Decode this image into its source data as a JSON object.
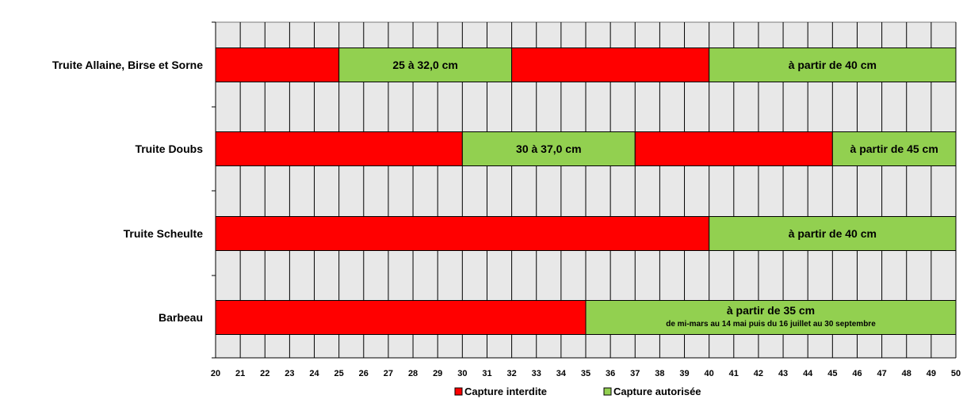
{
  "chart_data": {
    "type": "bar",
    "orientation": "horizontal",
    "stacked": true,
    "xlim": [
      20,
      50
    ],
    "x_ticks": [
      "20",
      "21",
      "22",
      "23",
      "24",
      "25",
      "26",
      "27",
      "28",
      "29",
      "30",
      "31",
      "32",
      "33",
      "34",
      "35",
      "36",
      "37",
      "38",
      "39",
      "40",
      "41",
      "42",
      "43",
      "44",
      "45",
      "46",
      "47",
      "48",
      "49",
      "50"
    ],
    "grid": true,
    "legend_position": "bottom-center",
    "legend": [
      {
        "label": "Capture interdite",
        "color": "#ff0000"
      },
      {
        "label": "Capture autorisée",
        "color": "#92d050"
      }
    ],
    "categories": [
      "Truite Allaine, Birse et Sorne",
      "Truite Doubs",
      "Truite Scheulte",
      "Barbeau"
    ],
    "rows": [
      {
        "name": "Truite Allaine, Birse et Sorne",
        "segments": [
          {
            "start": 20,
            "end": 25,
            "status": "interdite",
            "label": ""
          },
          {
            "start": 25,
            "end": 32,
            "status": "autorisee",
            "label": "25 à 32,0 cm"
          },
          {
            "start": 32,
            "end": 40,
            "status": "interdite",
            "label": ""
          },
          {
            "start": 40,
            "end": 50,
            "status": "autorisee",
            "label": "à partir de 40 cm"
          }
        ]
      },
      {
        "name": "Truite Doubs",
        "segments": [
          {
            "start": 20,
            "end": 30,
            "status": "interdite",
            "label": ""
          },
          {
            "start": 30,
            "end": 37,
            "status": "autorisee",
            "label": "30 à 37,0 cm"
          },
          {
            "start": 37,
            "end": 45,
            "status": "interdite",
            "label": ""
          },
          {
            "start": 45,
            "end": 50,
            "status": "autorisee",
            "label": "à partir de 45 cm"
          }
        ]
      },
      {
        "name": "Truite Scheulte",
        "segments": [
          {
            "start": 20,
            "end": 40,
            "status": "interdite",
            "label": ""
          },
          {
            "start": 40,
            "end": 50,
            "status": "autorisee",
            "label": "à partir de 40 cm"
          }
        ]
      },
      {
        "name": "Barbeau",
        "segments": [
          {
            "start": 20,
            "end": 35,
            "status": "interdite",
            "label": ""
          },
          {
            "start": 35,
            "end": 50,
            "status": "autorisee",
            "label": "à partir de 35 cm",
            "sublabel": "de mi-mars au 14 mai puis du 16 juillet au 30 septembre"
          }
        ]
      }
    ]
  }
}
